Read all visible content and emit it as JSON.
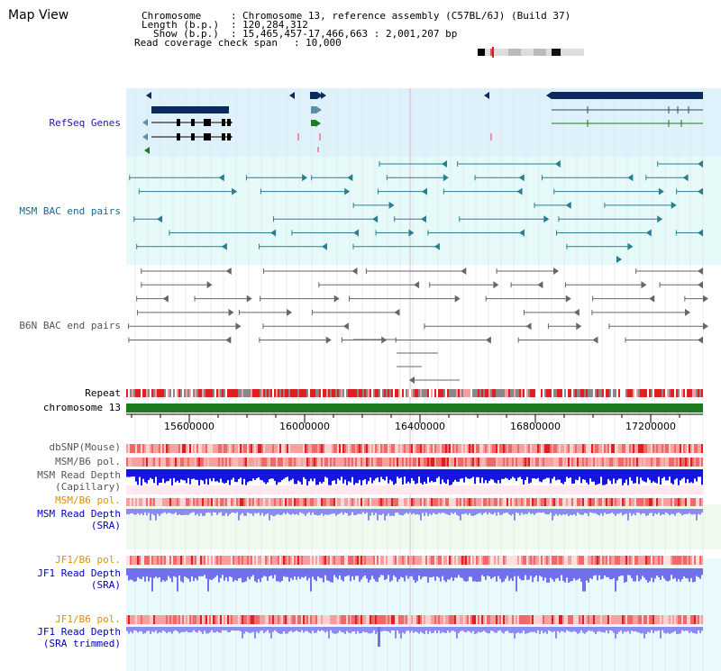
{
  "view": {
    "title": "Map View",
    "header": {
      "chromosome_key": "Chromosome",
      "chromosome_value": "Chromosome 13, reference assembly (C57BL/6J) (Build 37)",
      "length_key": "Length (b.p.)",
      "length_value": "120,284,312",
      "show_key": "Show (b.p.)",
      "show_value": "15,465,457-17,466,663 : 2,001,207 bp",
      "coverage_key": "Read coverage check span",
      "coverage_value": "10,000"
    }
  },
  "tracks": {
    "refseq": "RefSeq Genes",
    "msm_bac": "MSM BAC end pairs",
    "b6n_bac": "B6N BAC end pairs",
    "repeat": "Repeat",
    "chromosome": "chromosome 13",
    "dbsnp": "dbSNP(Mouse)",
    "msm_b6_pol": "MSM/B6 pol.",
    "msm_depth_cap_1": "MSM Read Depth",
    "msm_depth_cap_2": "(Capillary)",
    "msm_b6_pol_2": "MSM/B6 pol.",
    "msm_depth_sra_1": "MSM Read Depth",
    "msm_depth_sra_2": "(SRA)",
    "jf1_b6_pol": "JF1/B6 pol.",
    "jf1_depth_1": "JF1 Read Depth",
    "jf1_depth_2": "(SRA)",
    "jf1_b6_pol_2": "JF1/B6 pol.",
    "jf1_trim_1": "JF1 Read Depth",
    "jf1_trim_2": "(SRA trimmed)"
  },
  "axis": {
    "ticks": [
      "15600000",
      "16000000",
      "16400000",
      "16800000",
      "17200000"
    ]
  },
  "colors": {
    "refseq_bg": "#dff2fb",
    "bac_bg": "#e6fafa",
    "gene": "#0b2a5e",
    "msm_bac": "#2a7f8f",
    "b6n_bac": "#666666",
    "chromosome": "#1e7a1e",
    "depth_cap": "#1515e0",
    "depth_sra": "#8a8af0",
    "pol": "#f06060"
  }
}
